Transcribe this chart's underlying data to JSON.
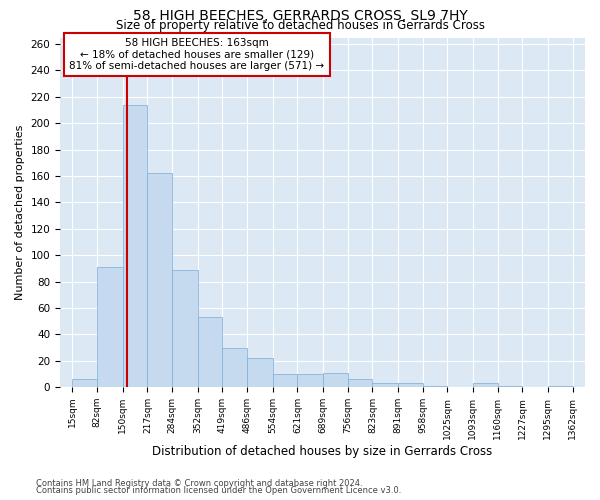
{
  "title1": "58, HIGH BEECHES, GERRARDS CROSS, SL9 7HY",
  "title2": "Size of property relative to detached houses in Gerrards Cross",
  "xlabel": "Distribution of detached houses by size in Gerrards Cross",
  "ylabel": "Number of detached properties",
  "footer1": "Contains HM Land Registry data © Crown copyright and database right 2024.",
  "footer2": "Contains public sector information licensed under the Open Government Licence v3.0.",
  "annotation_title": "58 HIGH BEECHES: 163sqm",
  "annotation_line1": "← 18% of detached houses are smaller (129)",
  "annotation_line2": "81% of semi-detached houses are larger (571) →",
  "property_size": 163,
  "bins": [
    15,
    82,
    150,
    217,
    284,
    352,
    419,
    486,
    554,
    621,
    689,
    756,
    823,
    891,
    958,
    1025,
    1093,
    1160,
    1227,
    1295,
    1362
  ],
  "bin_labels": [
    "15sqm",
    "82sqm",
    "150sqm",
    "217sqm",
    "284sqm",
    "352sqm",
    "419sqm",
    "486sqm",
    "554sqm",
    "621sqm",
    "689sqm",
    "756sqm",
    "823sqm",
    "891sqm",
    "958sqm",
    "1025sqm",
    "1093sqm",
    "1160sqm",
    "1227sqm",
    "1295sqm",
    "1362sqm"
  ],
  "values": [
    6,
    91,
    214,
    162,
    89,
    53,
    30,
    22,
    10,
    10,
    11,
    6,
    3,
    3,
    1,
    0,
    3,
    1,
    0,
    1
  ],
  "bar_color": "#c5d9ef",
  "bar_edge_color": "#7badd4",
  "redline_color": "#cc0000",
  "annotation_box_color": "#cc0000",
  "background_color": "#dce9f5",
  "grid_color": "#ffffff",
  "ylim": [
    0,
    265
  ],
  "yticks": [
    0,
    20,
    40,
    60,
    80,
    100,
    120,
    140,
    160,
    180,
    200,
    220,
    240,
    260
  ]
}
